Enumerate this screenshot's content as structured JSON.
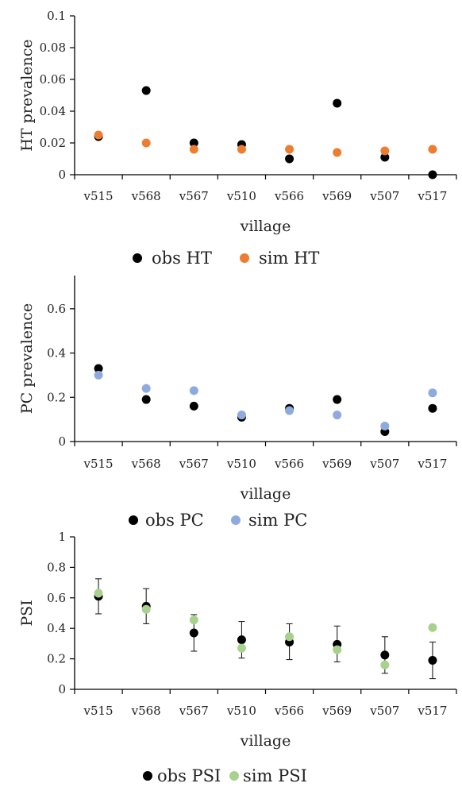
{
  "chart_data": [
    {
      "type": "scatter",
      "categories": [
        "v515",
        "v568",
        "v567",
        "v510",
        "v566",
        "v569",
        "v507",
        "v517"
      ],
      "xlabel": "village",
      "ylabel": "HT prevalence",
      "ylim": [
        0,
        0.1
      ],
      "yticks": [
        0,
        0.02,
        0.04,
        0.06,
        0.08,
        0.1
      ],
      "ytick_labels": [
        "0",
        "0.02",
        "0.04",
        "0.06",
        "0.08",
        "0.1"
      ],
      "legend_position": "bottom",
      "series": [
        {
          "name": "obs HT",
          "color": "#000000",
          "values": [
            0.024,
            0.053,
            0.02,
            0.019,
            0.01,
            0.045,
            0.011,
            0.0
          ]
        },
        {
          "name": "sim HT",
          "color": "#ED7D31",
          "values": [
            0.025,
            0.02,
            0.016,
            0.016,
            0.016,
            0.014,
            0.015,
            0.016
          ]
        }
      ]
    },
    {
      "type": "scatter",
      "categories": [
        "v515",
        "v568",
        "v567",
        "v510",
        "v566",
        "v569",
        "v507",
        "v517"
      ],
      "xlabel": "village",
      "ylabel": "PC prevalence",
      "ylim": [
        0,
        0.75
      ],
      "yticks": [
        0,
        0.2,
        0.4,
        0.6
      ],
      "ytick_labels": [
        "0",
        "0.2",
        "0.4",
        "0.6"
      ],
      "legend_position": "bottom",
      "series": [
        {
          "name": "obs PC",
          "color": "#000000",
          "values": [
            0.33,
            0.19,
            0.16,
            0.11,
            0.15,
            0.19,
            0.045,
            0.15
          ]
        },
        {
          "name": "sim PC",
          "color": "#8FAADC",
          "values": [
            0.3,
            0.24,
            0.23,
            0.12,
            0.14,
            0.12,
            0.07,
            0.22
          ]
        }
      ]
    },
    {
      "type": "scatter",
      "categories": [
        "v515",
        "v568",
        "v567",
        "v510",
        "v566",
        "v569",
        "v507",
        "v517"
      ],
      "xlabel": "village",
      "ylabel": "PSI",
      "ylim": [
        0,
        1
      ],
      "yticks": [
        0,
        0.2,
        0.4,
        0.6,
        0.8,
        1
      ],
      "ytick_labels": [
        "0",
        "0.2",
        "0.4",
        "0.6",
        "0.8",
        "1"
      ],
      "legend_position": "bottom",
      "series": [
        {
          "name": "obs PSI",
          "color": "#000000",
          "values": [
            0.61,
            0.545,
            0.37,
            0.325,
            0.31,
            0.295,
            0.225,
            0.19
          ],
          "error_low": [
            0.495,
            0.43,
            0.25,
            0.205,
            0.195,
            0.18,
            0.105,
            0.07
          ],
          "error_high": [
            0.725,
            0.66,
            0.49,
            0.445,
            0.43,
            0.415,
            0.345,
            0.31
          ]
        },
        {
          "name": "sim PSI",
          "color": "#A9D18E",
          "values": [
            0.63,
            0.525,
            0.455,
            0.27,
            0.345,
            0.26,
            0.16,
            0.405
          ]
        }
      ]
    }
  ]
}
